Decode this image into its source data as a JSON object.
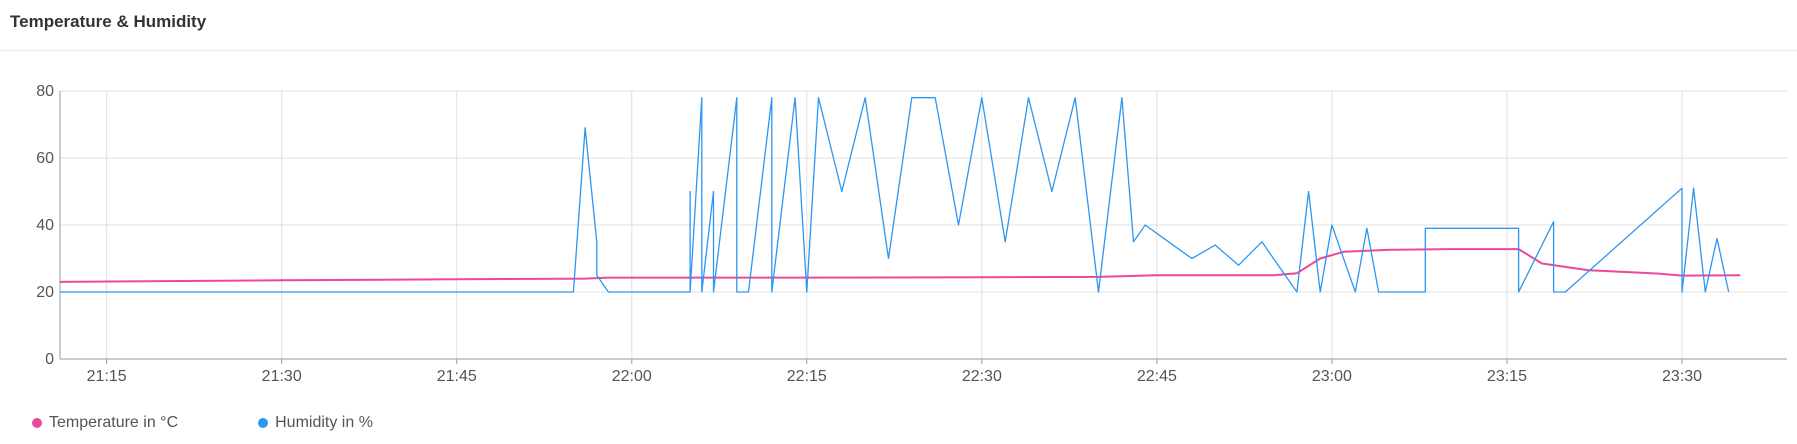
{
  "header": {
    "title": "Temperature & Humidity"
  },
  "chart_data": {
    "type": "line",
    "title": "",
    "xlabel": "",
    "ylabel": "",
    "ylim": [
      0,
      80
    ],
    "y_ticks": [
      0,
      20,
      40,
      60,
      80
    ],
    "xlim": [
      "21:11",
      "23:39"
    ],
    "x_ticks": [
      "21:15",
      "21:30",
      "21:45",
      "22:00",
      "22:15",
      "22:30",
      "22:45",
      "23:00",
      "23:15",
      "23:30"
    ],
    "grid": true,
    "legend": "bottom-left",
    "series": [
      {
        "name": "Temperature in °C",
        "color": "#ec4899",
        "x": [
          "21:11",
          "21:30",
          "21:45",
          "21:56",
          "21:58",
          "22:15",
          "22:30",
          "22:40",
          "22:45",
          "22:55",
          "22:57",
          "22:59",
          "23:01",
          "23:05",
          "23:10",
          "23:16",
          "23:18",
          "23:22",
          "23:28",
          "23:30",
          "23:35"
        ],
        "values": [
          23.0,
          23.5,
          23.8,
          24.0,
          24.3,
          24.3,
          24.4,
          24.5,
          25.0,
          25.0,
          25.6,
          30.0,
          32.0,
          32.6,
          32.8,
          32.8,
          28.5,
          26.5,
          25.5,
          24.9,
          25.0
        ]
      },
      {
        "name": "Humidity in %",
        "color": "#2d96f2",
        "x": [
          "21:11",
          "21:55",
          "21:56",
          "21:57",
          "21:57",
          "21:58",
          "21:58",
          "21:59",
          "22:05",
          "22:05",
          "22:05",
          "22:06",
          "22:06",
          "22:07",
          "22:07",
          "22:09",
          "22:09",
          "22:10",
          "22:12",
          "22:12",
          "22:14",
          "22:15",
          "22:16",
          "22:18",
          "22:20",
          "22:22",
          "22:24",
          "22:26",
          "22:28",
          "22:30",
          "22:32",
          "22:34",
          "22:36",
          "22:38",
          "22:40",
          "22:42",
          "22:43",
          "22:44",
          "22:46",
          "22:48",
          "22:50",
          "22:52",
          "22:54",
          "22:56",
          "22:57",
          "22:58",
          "22:59",
          "23:00",
          "23:02",
          "23:03",
          "23:04",
          "23:08",
          "23:08",
          "23:16",
          "23:16",
          "23:19",
          "23:19",
          "23:20",
          "23:30",
          "23:30",
          "23:31",
          "23:32",
          "23:33",
          "23:34"
        ],
        "values": [
          20,
          20,
          69,
          35,
          25,
          20,
          20,
          20,
          20,
          50,
          20,
          78,
          20,
          50,
          20,
          78,
          20,
          20,
          78,
          20,
          78,
          20,
          78,
          50,
          78,
          30,
          78,
          78,
          40,
          78,
          35,
          78,
          50,
          78,
          20,
          78,
          35,
          40,
          35,
          30,
          34,
          28,
          35,
          25,
          20,
          50,
          20,
          40,
          20,
          39,
          20,
          20,
          39,
          39,
          20,
          41,
          20,
          20,
          51,
          20,
          51,
          20,
          36,
          20
        ]
      }
    ]
  }
}
